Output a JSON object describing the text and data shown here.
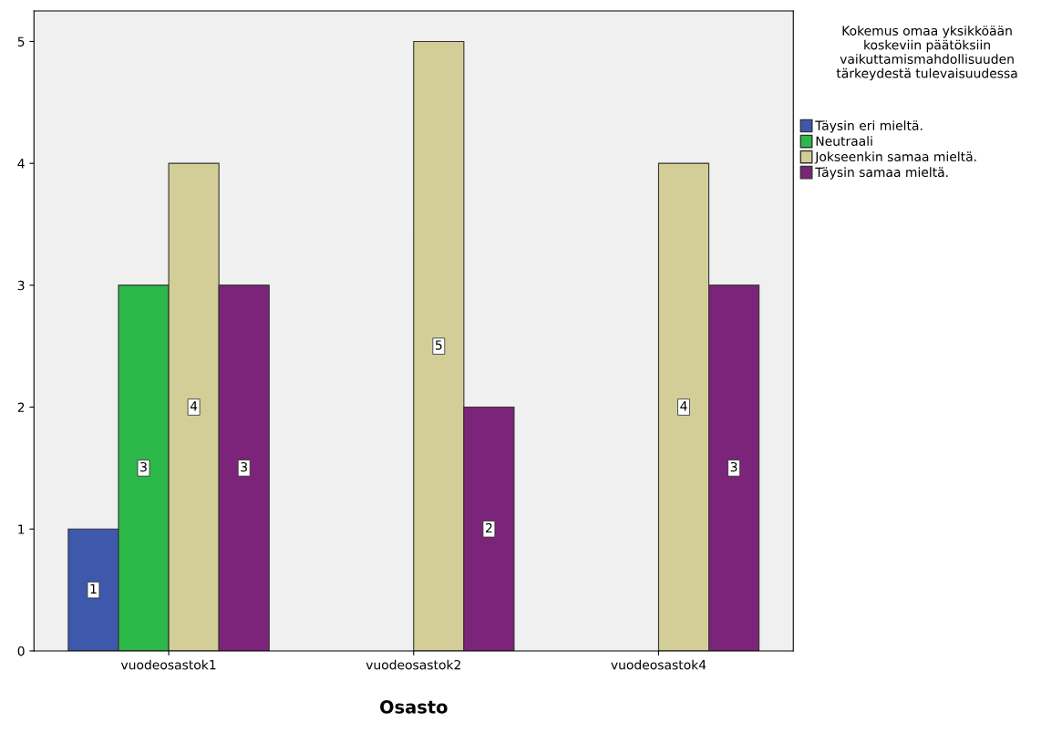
{
  "chart_data": {
    "type": "bar",
    "xlabel": "Osasto",
    "legend_title": "Kokemus omaa yksikköään koskeviin päätöksiin vaikuttamismahdollisuuden tärkeydestä tulevaisuudessa",
    "categories": [
      "vuodeosastok1",
      "vuodeosastok2",
      "vuodeosastok4"
    ],
    "series": [
      {
        "name": "Täysin eri mieltä.",
        "color": "#3e58ac",
        "values": [
          1,
          null,
          null
        ]
      },
      {
        "name": "Neutraali",
        "color": "#2db84a",
        "values": [
          3,
          null,
          null
        ]
      },
      {
        "name": "Jokseenkin samaa mieltä.",
        "color": "#d3ce97",
        "values": [
          4,
          5,
          4
        ]
      },
      {
        "name": "Täysin samaa mieltä.",
        "color": "#7b2479",
        "values": [
          3,
          2,
          3
        ]
      }
    ],
    "ylim": [
      0,
      5.25
    ],
    "yticks": [
      0,
      1,
      2,
      3,
      4,
      5
    ],
    "grid": false,
    "legend": "top right",
    "data_labels": true
  }
}
